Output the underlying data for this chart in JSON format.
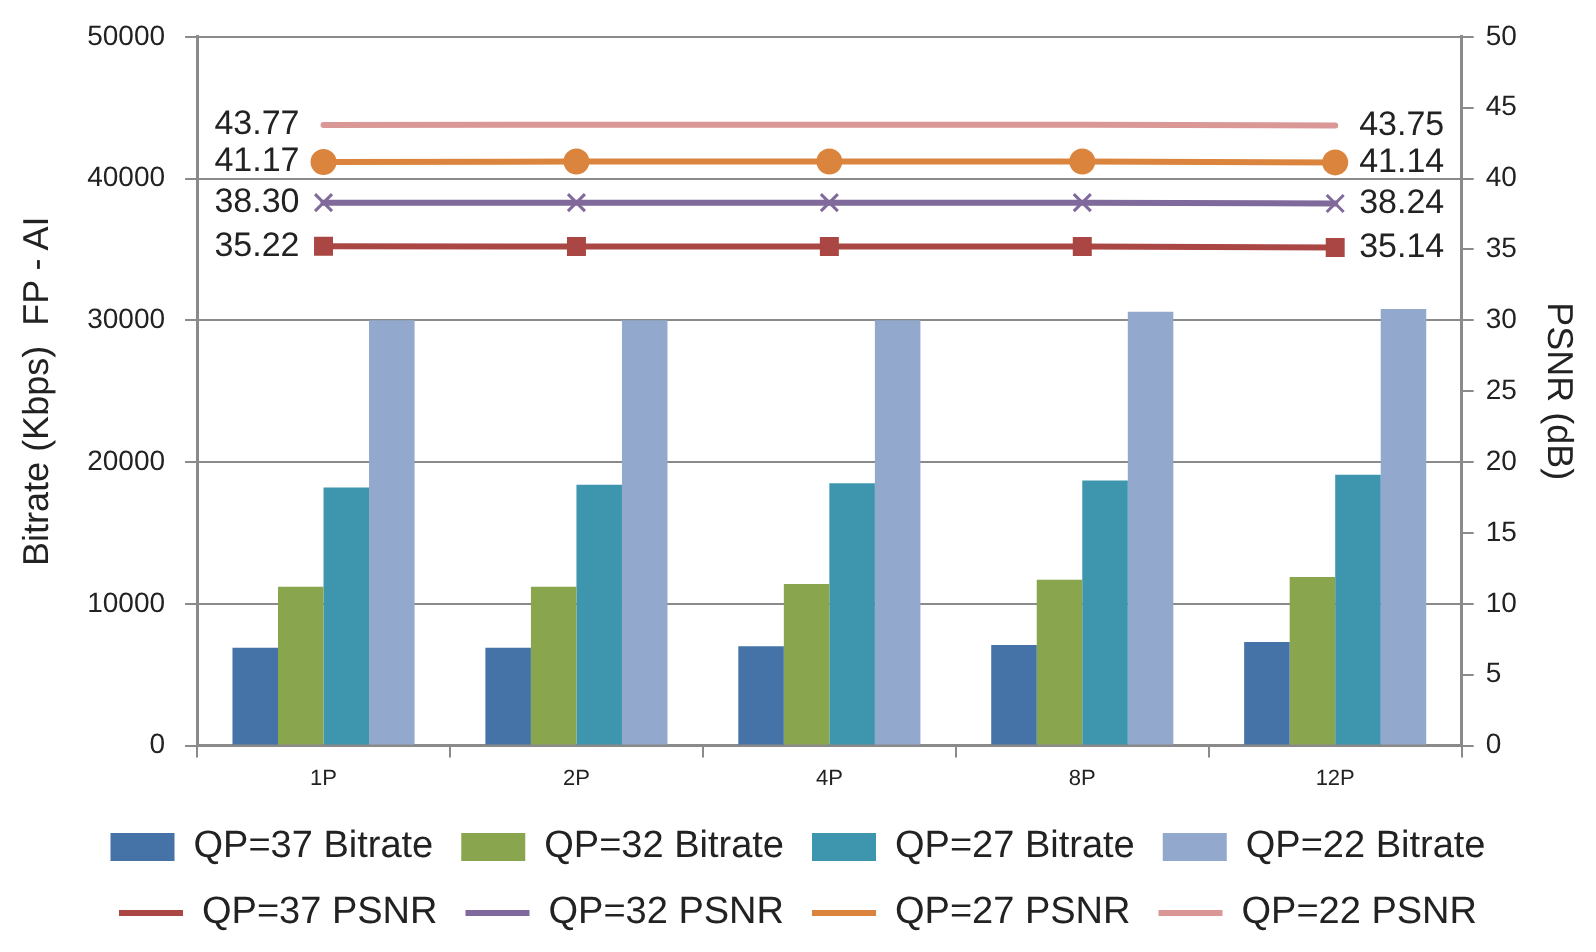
{
  "chart_data": {
    "type": "bar",
    "ylabel": "Bitrate (Kbps)  FP - AI",
    "y2label": "PSNR (dB)",
    "categories": [
      "1P",
      "2P",
      "4P",
      "8P",
      "12P"
    ],
    "series": [
      {
        "name": "QP=37 Bitrate",
        "color": "#4572a7",
        "values": [
          6900,
          6900,
          7000,
          7100,
          7300
        ]
      },
      {
        "name": "QP=32 Bitrate",
        "color": "#89a54e",
        "values": [
          11200,
          11200,
          11400,
          11700,
          11900
        ]
      },
      {
        "name": "QP=27 Bitrate",
        "color": "#3d96ae",
        "values": [
          18200,
          18400,
          18500,
          18700,
          19100
        ]
      },
      {
        "name": "QP=22 Bitrate",
        "color": "#92a8cd",
        "values": [
          30000,
          30000,
          30000,
          30600,
          30800
        ]
      },
      {
        "name": "QP=37 PSNR",
        "type": "line",
        "axis": "y2",
        "color": "#aa4643",
        "marker": "square",
        "values": [
          35.22,
          35.2,
          35.2,
          35.2,
          35.14
        ],
        "value_labels": [
          "35.22",
          null,
          null,
          null,
          "35.14"
        ]
      },
      {
        "name": "QP=32 PSNR",
        "type": "line",
        "axis": "y2",
        "color": "#80699b",
        "marker": "cross",
        "values": [
          38.3,
          38.3,
          38.3,
          38.3,
          38.24
        ],
        "value_labels": [
          "38.30",
          null,
          null,
          null,
          "38.24"
        ]
      },
      {
        "name": "QP=27 PSNR",
        "type": "line",
        "axis": "y2",
        "color": "#db843d",
        "marker": "circle",
        "values": [
          41.17,
          41.2,
          41.2,
          41.2,
          41.14
        ],
        "value_labels": [
          "41.17",
          null,
          null,
          null,
          "41.14"
        ]
      },
      {
        "name": "QP=22 PSNR",
        "type": "line",
        "axis": "y2",
        "color": "#d99795",
        "marker": "none",
        "values": [
          43.77,
          43.8,
          43.8,
          43.8,
          43.75
        ],
        "value_labels": [
          "43.77",
          null,
          null,
          null,
          "43.75"
        ]
      }
    ],
    "ylim": [
      0,
      50000
    ],
    "yticks": [
      0,
      10000,
      20000,
      30000,
      40000,
      50000
    ],
    "y2lim": [
      0,
      50
    ],
    "y2ticks": [
      0,
      5,
      10,
      15,
      20,
      25,
      30,
      35,
      40,
      45,
      50
    ],
    "grid": "y",
    "legend": "bottom",
    "line_style": "solid"
  }
}
